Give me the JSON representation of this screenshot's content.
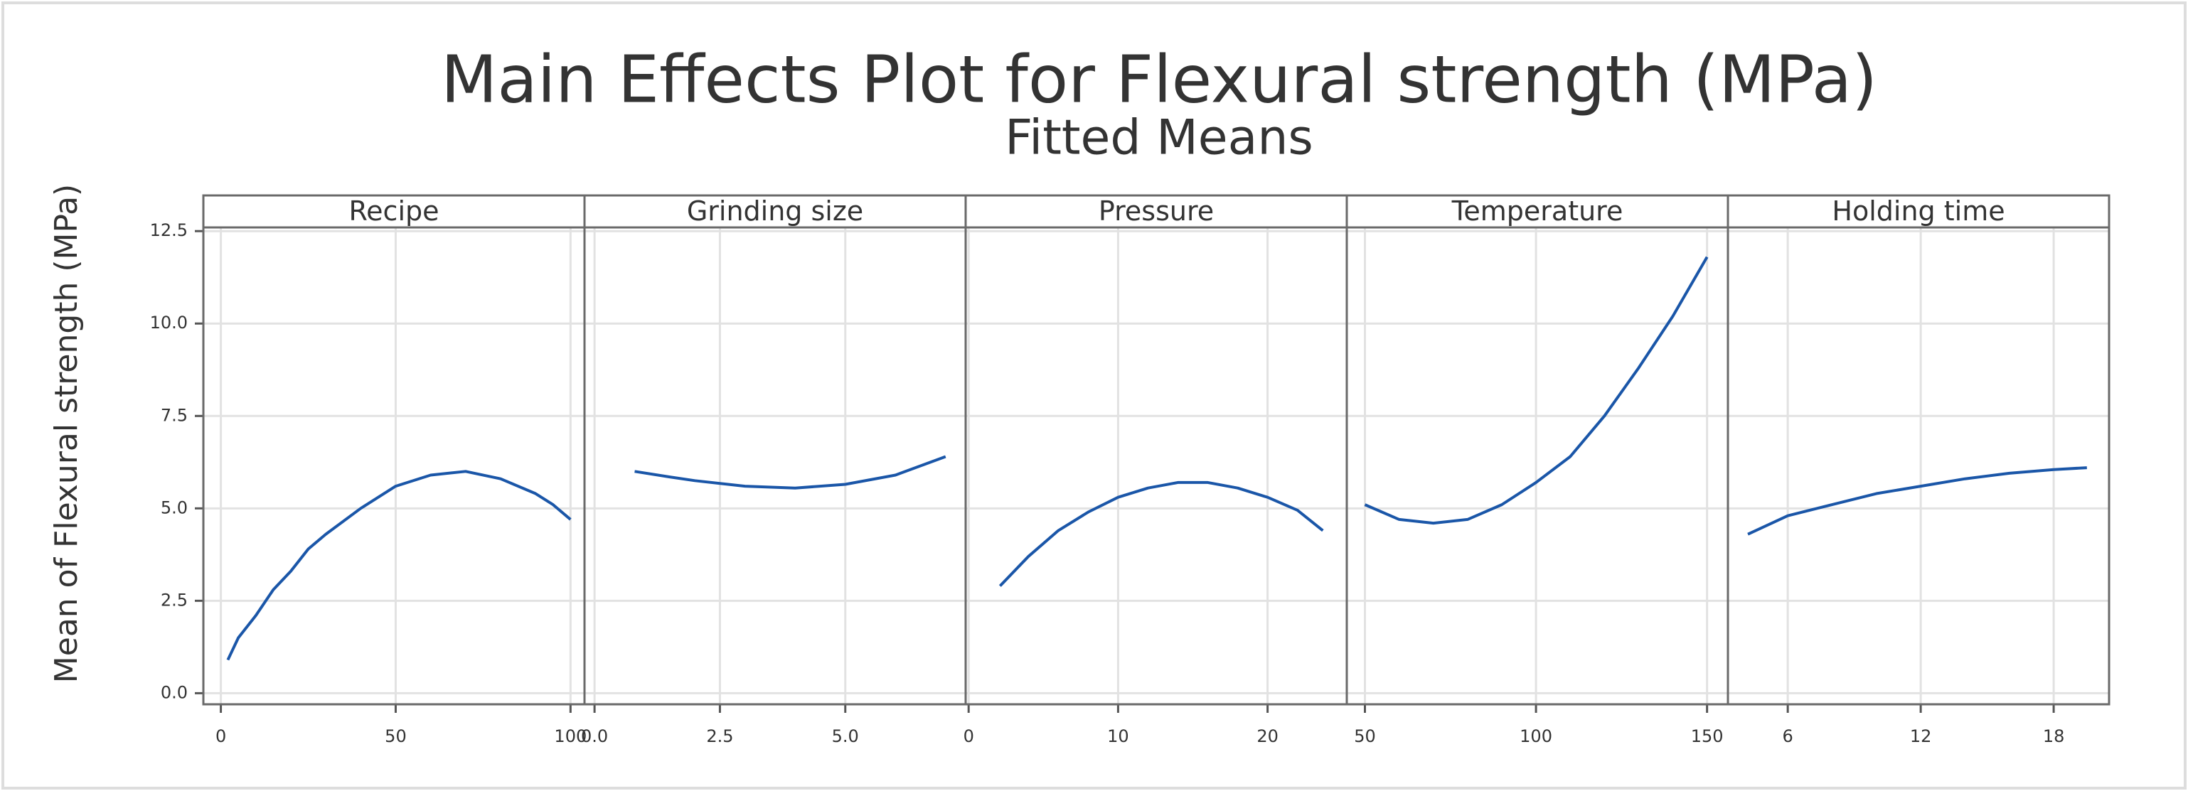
{
  "title": "Main Effects Plot for Flexural strength (MPa)",
  "subtitle": "Fitted Means",
  "y_label": "Mean of Flexural strength (MPa)",
  "ylim": [
    -0.3,
    12.6
  ],
  "yticks": [
    {
      "value": 0,
      "label": "0.0"
    },
    2.5,
    {
      "value": 5,
      "label": "5.0"
    },
    7.5,
    {
      "value": 10,
      "label": "10.0"
    },
    12.5
  ],
  "grid": true,
  "chart_data": [
    {
      "type": "line",
      "title": "Recipe",
      "color": "#1a56a8",
      "x": [
        2,
        5,
        10,
        15,
        20,
        25,
        30,
        40,
        50,
        60,
        70,
        80,
        90,
        95,
        100
      ],
      "values": [
        0.9,
        1.5,
        2.1,
        2.8,
        3.3,
        3.9,
        4.3,
        5.0,
        5.6,
        5.9,
        6.0,
        5.8,
        5.4,
        5.1,
        4.7
      ],
      "xlim": [
        -5,
        104
      ],
      "xticks": [
        0,
        50,
        100
      ]
    },
    {
      "type": "line",
      "title": "Grinding size",
      "color": "#1a56a8",
      "x": [
        0.8,
        1.5,
        2,
        3,
        4,
        5,
        6,
        7
      ],
      "values": [
        6.0,
        5.85,
        5.75,
        5.6,
        5.55,
        5.65,
        5.9,
        6.4
      ],
      "xlim": [
        -0.2,
        7.4
      ],
      "xticks": [
        {
          "value": 0,
          "label": "0.0"
        },
        2.5,
        {
          "value": 5,
          "label": "5.0"
        }
      ]
    },
    {
      "type": "line",
      "title": "Pressure",
      "color": "#1a56a8",
      "x": [
        2.1,
        4,
        6,
        8,
        10,
        12,
        14,
        16,
        18,
        20,
        22,
        23.7
      ],
      "values": [
        2.9,
        3.7,
        4.4,
        4.9,
        5.3,
        5.55,
        5.7,
        5.7,
        5.55,
        5.3,
        4.95,
        4.4
      ],
      "xlim": [
        -0.2,
        25.3
      ],
      "xticks": [
        0,
        10,
        20
      ]
    },
    {
      "type": "line",
      "title": "Temperature",
      "color": "#1a56a8",
      "x": [
        50,
        60,
        70,
        80,
        90,
        100,
        110,
        120,
        130,
        140,
        150
      ],
      "values": [
        5.1,
        4.7,
        4.6,
        4.7,
        5.1,
        5.7,
        6.4,
        7.5,
        8.8,
        10.2,
        11.8
      ],
      "xlim": [
        44.7,
        156.1
      ],
      "xticks": [
        50,
        100,
        150
      ]
    },
    {
      "type": "line",
      "title": "Holding time",
      "color": "#1a56a8",
      "x": [
        4.2,
        6,
        8,
        10,
        12,
        14,
        16,
        18,
        19.5
      ],
      "values": [
        4.3,
        4.8,
        5.1,
        5.4,
        5.6,
        5.8,
        5.95,
        6.05,
        6.1
      ],
      "xlim": [
        3.3,
        20.5
      ],
      "xticks": [
        6,
        12,
        18
      ]
    }
  ]
}
